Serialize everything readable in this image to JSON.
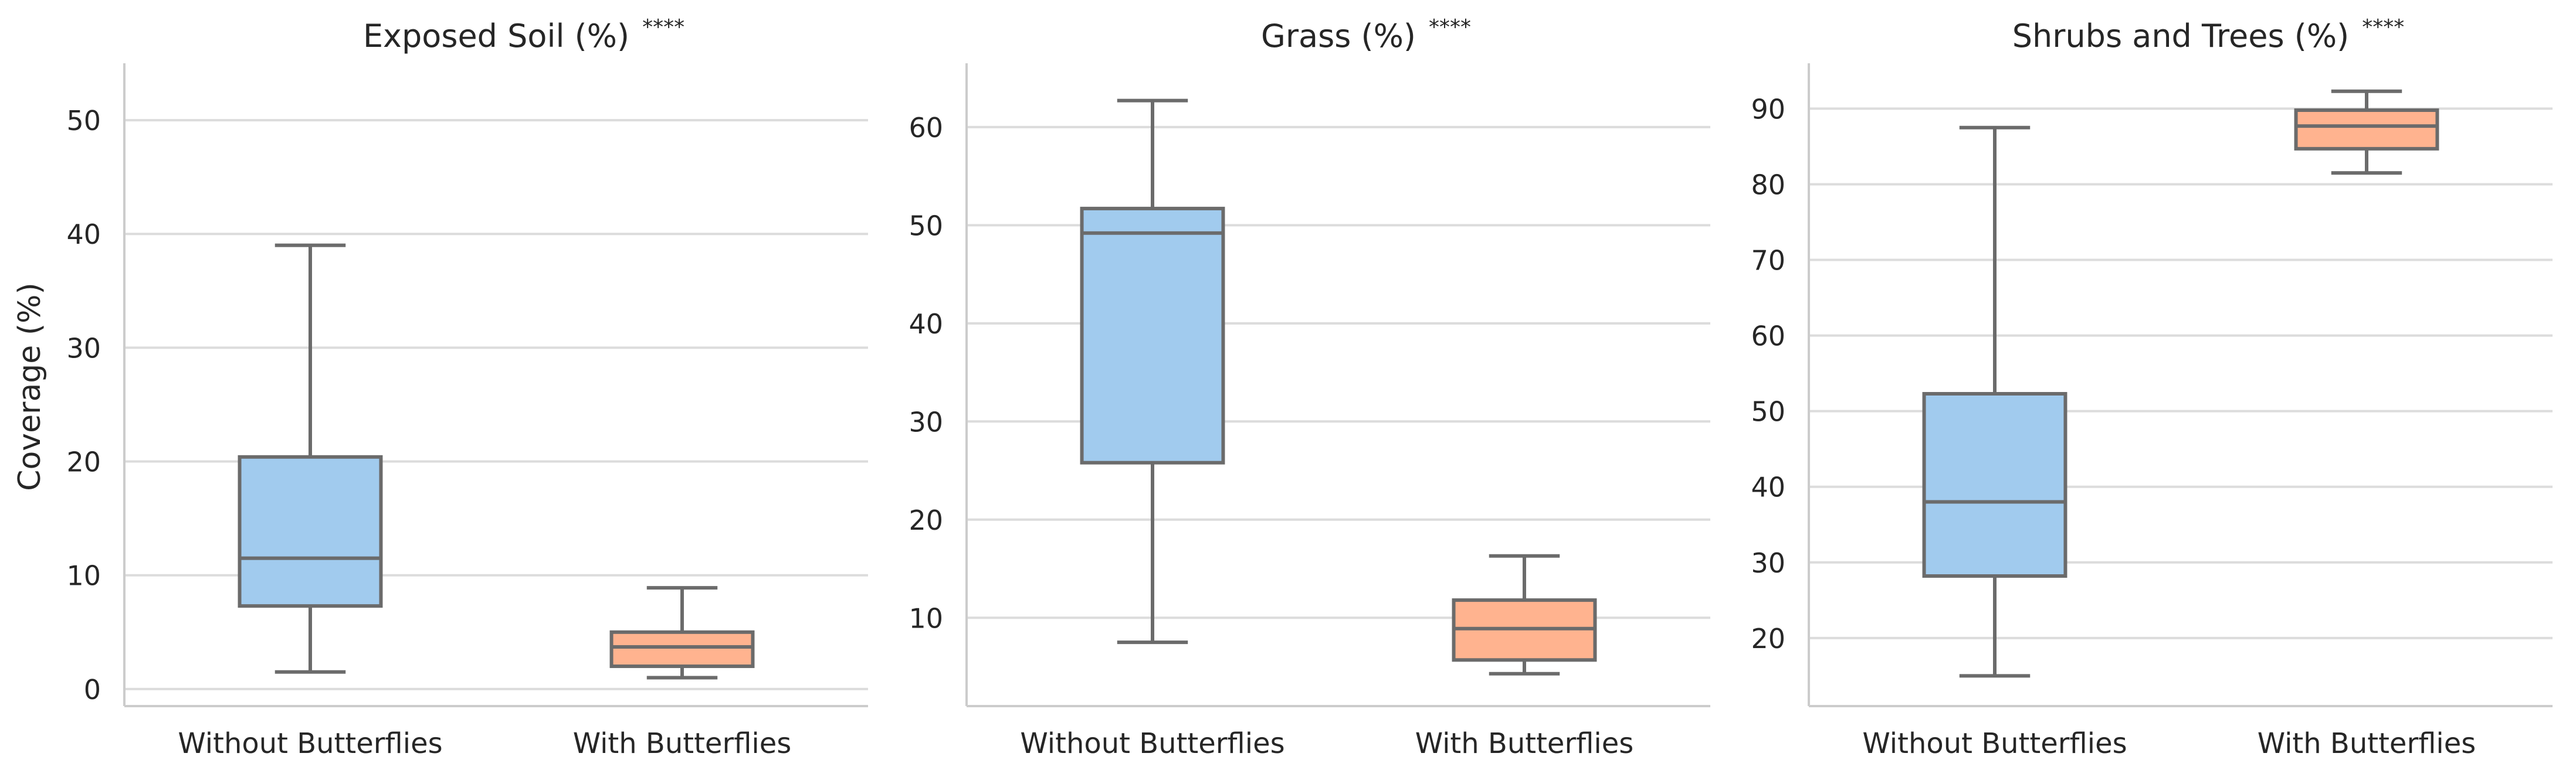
{
  "figure": {
    "ylabel": "Coverage (%)"
  },
  "colors": {
    "without": "#a1cbee",
    "with": "#ffb38f",
    "stroke": "#6b6b6b",
    "grid": "#dcdcdc",
    "axis": "#cccccc",
    "text": "#262626"
  },
  "chart_data": [
    {
      "type": "box",
      "title": "Exposed Soil (%)",
      "significance": "****",
      "xlabel": "",
      "ylabel": "Coverage (%)",
      "grid": true,
      "ylim": [
        -1.5,
        55
      ],
      "yticks": [
        0,
        10,
        20,
        30,
        40,
        50
      ],
      "categories": [
        "Without Butterflies",
        "With Butterflies"
      ],
      "boxes": [
        {
          "category": "Without Butterflies",
          "whisker_low": 1.5,
          "q1": 7.3,
          "median": 11.5,
          "q3": 20.4,
          "whisker_high": 39.0
        },
        {
          "category": "With Butterflies",
          "whisker_low": 1.0,
          "q1": 2.0,
          "median": 3.7,
          "q3": 5.0,
          "whisker_high": 8.9
        }
      ]
    },
    {
      "type": "box",
      "title": "Grass (%)",
      "significance": "****",
      "xlabel": "",
      "ylabel": "",
      "grid": true,
      "ylim": [
        1.0,
        66.5
      ],
      "yticks": [
        10,
        20,
        30,
        40,
        50,
        60
      ],
      "categories": [
        "Without Butterflies",
        "With Butterflies"
      ],
      "boxes": [
        {
          "category": "Without Butterflies",
          "whisker_low": 7.5,
          "q1": 25.8,
          "median": 49.2,
          "q3": 51.7,
          "whisker_high": 62.7
        },
        {
          "category": "With Butterflies",
          "whisker_low": 4.3,
          "q1": 5.7,
          "median": 8.9,
          "q3": 11.8,
          "whisker_high": 16.3
        }
      ]
    },
    {
      "type": "box",
      "title": "Shrubs and Trees (%)",
      "significance": "****",
      "xlabel": "",
      "ylabel": "",
      "grid": true,
      "ylim": [
        11.0,
        96.0
      ],
      "yticks": [
        20,
        30,
        40,
        50,
        60,
        70,
        80,
        90
      ],
      "categories": [
        "Without Butterflies",
        "With Butterflies"
      ],
      "boxes": [
        {
          "category": "Without Butterflies",
          "whisker_low": 15.0,
          "q1": 28.2,
          "median": 38.0,
          "q3": 52.3,
          "whisker_high": 87.5
        },
        {
          "category": "With Butterflies",
          "whisker_low": 81.5,
          "q1": 84.7,
          "median": 87.7,
          "q3": 89.8,
          "whisker_high": 92.3
        }
      ]
    }
  ]
}
